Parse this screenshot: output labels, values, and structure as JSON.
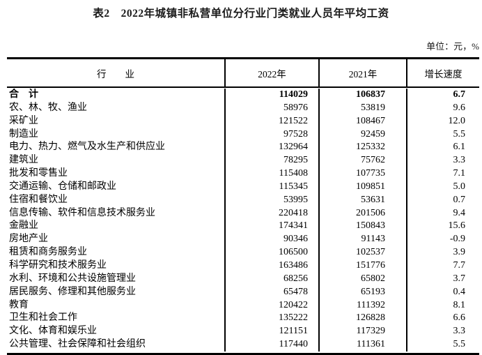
{
  "page": {
    "title": "表2　2022年城镇非私营单位分行业门类就业人员年平均工资",
    "unit_note": "单位：元，%"
  },
  "colors": {
    "text": "#000000",
    "border": "#000000",
    "background": "#ffffff"
  },
  "table": {
    "columns": [
      "行　　业",
      "2022年",
      "2021年",
      "增长速度"
    ],
    "rows": [
      {
        "industry": "合　计",
        "y2022": "114029",
        "y2021": "106837",
        "growth": "6.7",
        "bold": true
      },
      {
        "industry": "农、林、牧、渔业",
        "y2022": "58976",
        "y2021": "53819",
        "growth": "9.6",
        "bold": false
      },
      {
        "industry": "采矿业",
        "y2022": "121522",
        "y2021": "108467",
        "growth": "12.0",
        "bold": false
      },
      {
        "industry": "制造业",
        "y2022": "97528",
        "y2021": "92459",
        "growth": "5.5",
        "bold": false
      },
      {
        "industry": "电力、热力、燃气及水生产和供应业",
        "y2022": "132964",
        "y2021": "125332",
        "growth": "6.1",
        "bold": false
      },
      {
        "industry": "建筑业",
        "y2022": "78295",
        "y2021": "75762",
        "growth": "3.3",
        "bold": false
      },
      {
        "industry": "批发和零售业",
        "y2022": "115408",
        "y2021": "107735",
        "growth": "7.1",
        "bold": false
      },
      {
        "industry": "交通运输、仓储和邮政业",
        "y2022": "115345",
        "y2021": "109851",
        "growth": "5.0",
        "bold": false
      },
      {
        "industry": "住宿和餐饮业",
        "y2022": "53995",
        "y2021": "53631",
        "growth": "0.7",
        "bold": false
      },
      {
        "industry": "信息传输、软件和信息技术服务业",
        "y2022": "220418",
        "y2021": "201506",
        "growth": "9.4",
        "bold": false
      },
      {
        "industry": "金融业",
        "y2022": "174341",
        "y2021": "150843",
        "growth": "15.6",
        "bold": false
      },
      {
        "industry": "房地产业",
        "y2022": "90346",
        "y2021": "91143",
        "growth": "-0.9",
        "bold": false
      },
      {
        "industry": "租赁和商务服务业",
        "y2022": "106500",
        "y2021": "102537",
        "growth": "3.9",
        "bold": false
      },
      {
        "industry": "科学研究和技术服务业",
        "y2022": "163486",
        "y2021": "151776",
        "growth": "7.7",
        "bold": false
      },
      {
        "industry": "水利、环境和公共设施管理业",
        "y2022": "68256",
        "y2021": "65802",
        "growth": "3.7",
        "bold": false
      },
      {
        "industry": "居民服务、修理和其他服务业",
        "y2022": "65478",
        "y2021": "65193",
        "growth": "0.4",
        "bold": false
      },
      {
        "industry": "教育",
        "y2022": "120422",
        "y2021": "111392",
        "growth": "8.1",
        "bold": false
      },
      {
        "industry": "卫生和社会工作",
        "y2022": "135222",
        "y2021": "126828",
        "growth": "6.6",
        "bold": false
      },
      {
        "industry": "文化、体育和娱乐业",
        "y2022": "121151",
        "y2021": "117329",
        "growth": "3.3",
        "bold": false
      },
      {
        "industry": "公共管理、社会保障和社会组织",
        "y2022": "117440",
        "y2021": "111361",
        "growth": "5.5",
        "bold": false
      }
    ]
  },
  "chart_data": {
    "type": "table",
    "title": "表2　2022年城镇非私营单位分行业门类就业人员年平均工资",
    "unit": "元，%",
    "columns": [
      "行业",
      "2022年",
      "2021年",
      "增长速度"
    ],
    "categories": [
      "合计",
      "农、林、牧、渔业",
      "采矿业",
      "制造业",
      "电力、热力、燃气及水生产和供应业",
      "建筑业",
      "批发和零售业",
      "交通运输、仓储和邮政业",
      "住宿和餐饮业",
      "信息传输、软件和信息技术服务业",
      "金融业",
      "房地产业",
      "租赁和商务服务业",
      "科学研究和技术服务业",
      "水利、环境和公共设施管理业",
      "居民服务、修理和其他服务业",
      "教育",
      "卫生和社会工作",
      "文化、体育和娱乐业",
      "公共管理、社会保障和社会组织"
    ],
    "series": [
      {
        "name": "2022年",
        "values": [
          114029,
          58976,
          121522,
          97528,
          132964,
          78295,
          115408,
          115345,
          53995,
          220418,
          174341,
          90346,
          106500,
          163486,
          68256,
          65478,
          120422,
          135222,
          121151,
          117440
        ]
      },
      {
        "name": "2021年",
        "values": [
          106837,
          53819,
          108467,
          92459,
          125332,
          75762,
          107735,
          109851,
          53631,
          201506,
          150843,
          91143,
          102537,
          151776,
          65802,
          65193,
          111392,
          126828,
          117329,
          111361
        ]
      },
      {
        "name": "增长速度",
        "values": [
          6.7,
          9.6,
          12.0,
          5.5,
          6.1,
          3.3,
          7.1,
          5.0,
          0.7,
          9.4,
          15.6,
          -0.9,
          3.9,
          7.7,
          3.7,
          0.4,
          8.1,
          6.6,
          3.3,
          5.5
        ]
      }
    ]
  }
}
